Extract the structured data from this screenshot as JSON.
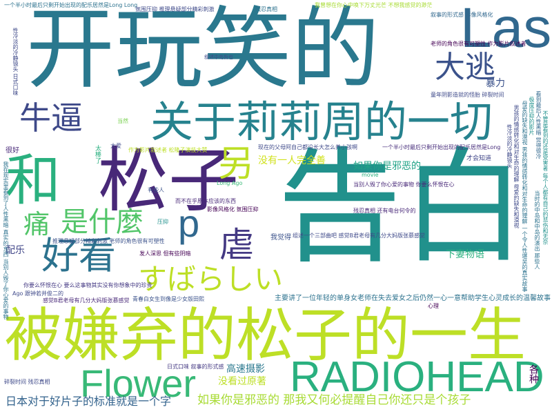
{
  "cloud": {
    "words": [
      {
        "text": "开玩笑的",
        "color": "#2a788e"
      },
      {
        "text": "告白",
        "color": "#21918c"
      },
      {
        "text": "被嫌弃的松子的一生",
        "color": "#bddf26"
      },
      {
        "text": "松子",
        "color": "#482878"
      },
      {
        "text": "和",
        "color": "#2ab07f"
      },
      {
        "text": "关于莉莉周的一切",
        "color": "#26828e"
      },
      {
        "text": "Last",
        "color": "#31688e"
      },
      {
        "text": "大逃",
        "color": "#3b528b"
      },
      {
        "text": "牛逼",
        "color": "#3e4989"
      },
      {
        "text": "另",
        "color": "#bddf26"
      },
      {
        "text": "p",
        "color": "#31688e"
      },
      {
        "text": "虐",
        "color": "#443983"
      },
      {
        "text": "痛",
        "color": "#52c569"
      },
      {
        "text": "是什麼",
        "color": "#52c569"
      },
      {
        "text": "好看",
        "color": "#2c728e"
      },
      {
        "text": "すばらしい",
        "color": "#bddf26"
      },
      {
        "text": "Flower",
        "color": "#38b977"
      },
      {
        "text": "RADIOHEAD",
        "color": "#2ab07f"
      },
      {
        "text": "如果你是邪恶的 那我又何必提醒自己你还只是个孩子",
        "color": "#a8db34"
      },
      {
        "text": "日本对于好片子的标准就是一个字",
        "color": "#33638d"
      },
      {
        "text": "没有一人完全善",
        "color": "#d0e11c"
      },
      {
        "text": "如果你是邪恶的",
        "color": "#20a386"
      },
      {
        "text": "下妻物语",
        "color": "#2ab07f"
      },
      {
        "text": "高速摄影",
        "color": "#2a788e"
      },
      {
        "text": "没看过原著",
        "color": "#bddf26"
      },
      {
        "text": "暴力",
        "color": "#3b528b"
      },
      {
        "text": "配乐",
        "color": "#404688"
      },
      {
        "text": "各种",
        "color": "#440154"
      },
      {
        "text": "主要讲了一位年轻的单身女老师在失去爱女之后仍然一心一意帮助学生心灵成长的温馨故事",
        "color": "#2c728e"
      },
      {
        "text": "现在的父母阿自己都没长大怎么养小孩啊",
        "color": "#3e4989"
      },
      {
        "text": "一个半小时最后只剩开始出现的配乐居然是Long",
        "color": "#472d7b"
      },
      {
        "text": "一个半小时最后只剩开始出现的配乐居然是Long Long",
        "color": "#2c728e"
      },
      {
        "text": "我曾想在你心中唤下万丈光芒 不想我感觉的渺茫",
        "color": "#a8db34"
      },
      {
        "text": "叙事的形式感 影像风格化",
        "color": "#31688e"
      },
      {
        "text": "老师的角色很有可塑性 作为影片叙述者",
        "color": "#440154"
      },
      {
        "text": "童年阴影造就的怪胎 碎裂时间",
        "color": "#3e4989"
      },
      {
        "text": "才会知道",
        "color": "#404688"
      },
      {
        "text": "残忍真相 还有电台何令的",
        "color": "#482878"
      },
      {
        "text": "推理悬疑部分精彩刺激 老师的角色很有可塑性",
        "color": "#3b528b"
      },
      {
        "text": "发人深思 但有些阴暗",
        "color": "#440154"
      },
      {
        "text": "日式口味 叙事的形式感",
        "color": "#443983"
      },
      {
        "text": "感觉B君老母有几分大妈版张慕感觉",
        "color": "#482878"
      },
      {
        "text": "青春白女生到像是少女版田熙",
        "color": "#3b528b"
      },
      {
        "text": "影像风格化 氛围压抑",
        "color": "#440154"
      },
      {
        "text": "组述一个三部曲吧 感觉B君老母有几分大妈版张慕感觉",
        "color": "#3e4989"
      },
      {
        "text": "当别人毁了你心爱的事物 你要么怀恨在心",
        "color": "#482878"
      },
      {
        "text": "你要么怀恨在心 要么这事物其实没有你想象中的珍贵",
        "color": "#443983"
      },
      {
        "text": "我觉得",
        "color": "#3b528b"
      },
      {
        "text": "movie",
        "color": "#2ab07f"
      },
      {
        "text": "有些人",
        "color": "#3b528b"
      },
      {
        "text": "Long Ago",
        "color": "#38b977"
      },
      {
        "text": "很好",
        "color": "#482878"
      },
      {
        "text": "太棒了",
        "color": "#29af7f"
      },
      {
        "text": "当然",
        "color": "#7ad151"
      },
      {
        "text": "大爱",
        "color": "#3e4989"
      },
      {
        "text": "作为影片叙述者 松隆子演技大赞",
        "color": "#bddf26"
      },
      {
        "text": "压抑",
        "color": "#21918c"
      },
      {
        "text": "心理",
        "color": "#440154"
      },
      {
        "text": "Ago 跟钟若井俊二的",
        "color": "#3e4989"
      },
      {
        "text": "氛围压抑 推理悬疑部分精彩刺激",
        "color": "#3e4989"
      },
      {
        "text": "残忍真相",
        "color": "#2c728e"
      },
      {
        "text": "碎裂时间 残忍真相",
        "color": "#3e4989"
      },
      {
        "text": "我在现实里看到了人性黑暗 真实的东西 当别人毁了你心爱的事物",
        "color": "#2c728e"
      },
      {
        "text": "性冷淡的冷静镜头 日式口味",
        "color": "#3e4989"
      },
      {
        "text": "母爱的缺失和漠视 男孩的情感转化和对生命的理解 一个令人性堪吴的真实故事",
        "color": "#2c728e"
      },
      {
        "text": "男孩的情感转化和对生命的理解 母爱的缺失和漠视",
        "color": "#3e4989"
      },
      {
        "text": "不管是看到的还是受害者 每个人都有自己的悲伤和无奈",
        "color": "#21918c"
      },
      {
        "text": "看到最后人性黑暗 觉得很冷",
        "color": "#31688e"
      },
      {
        "text": "极度压抑的影片",
        "color": "#21918c"
      },
      {
        "text": "性冷淡的冷静镜头",
        "color": "#3e4989"
      },
      {
        "text": "当时的中岛和中岛的演出 那些人",
        "color": "#2c728e"
      },
      {
        "text": "而不在乎原本应该的东西",
        "color": "#482878"
      },
      {
        "text": "叙述中岛哲也",
        "color": "#3e4989"
      }
    ]
  }
}
